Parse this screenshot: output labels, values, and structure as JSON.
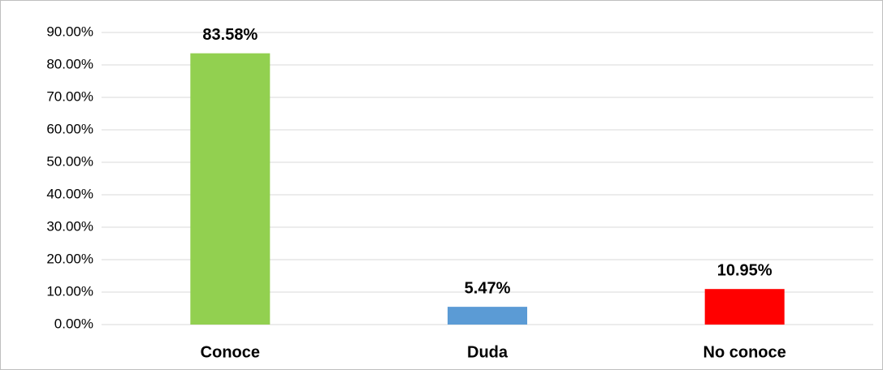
{
  "chart_data": {
    "type": "bar",
    "categories": [
      "Conoce",
      "Duda",
      "No conoce"
    ],
    "values": [
      83.58,
      5.47,
      10.95
    ],
    "value_labels": [
      "83.58%",
      "5.47%",
      "10.95%"
    ],
    "colors": [
      "#92d050",
      "#5b9bd5",
      "#ff0000"
    ],
    "ylim": [
      0,
      90
    ],
    "yticks": [
      {
        "value": 0,
        "label": "0.00%"
      },
      {
        "value": 10,
        "label": "10.00%"
      },
      {
        "value": 20,
        "label": "20.00%"
      },
      {
        "value": 30,
        "label": "30.00%"
      },
      {
        "value": 40,
        "label": "40.00%"
      },
      {
        "value": 50,
        "label": "50.00%"
      },
      {
        "value": 60,
        "label": "60.00%"
      },
      {
        "value": 70,
        "label": "70.00%"
      },
      {
        "value": 80,
        "label": "80.00%"
      },
      {
        "value": 90,
        "label": "90.00%"
      }
    ],
    "grid": true
  }
}
